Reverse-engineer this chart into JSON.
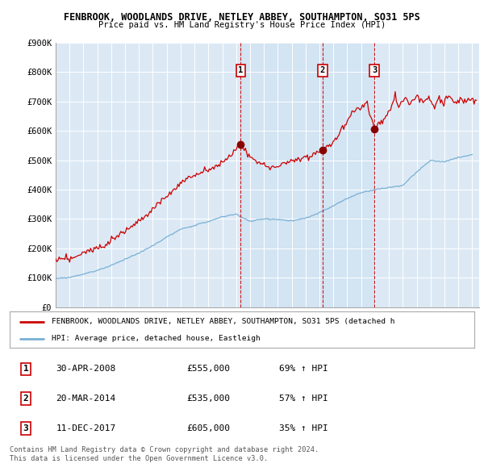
{
  "title1": "FENBROOK, WOODLANDS DRIVE, NETLEY ABBEY, SOUTHAMPTON, SO31 5PS",
  "title2": "Price paid vs. HM Land Registry's House Price Index (HPI)",
  "ylim": [
    0,
    900000
  ],
  "yticks": [
    0,
    100000,
    200000,
    300000,
    400000,
    500000,
    600000,
    700000,
    800000,
    900000
  ],
  "ytick_labels": [
    "£0",
    "£100K",
    "£200K",
    "£300K",
    "£400K",
    "£500K",
    "£600K",
    "£700K",
    "£800K",
    "£900K"
  ],
  "xlim_start": 1995.0,
  "xlim_end": 2025.5,
  "sale_dates": [
    2008.33,
    2014.22,
    2017.95
  ],
  "sale_prices": [
    555000,
    535000,
    605000
  ],
  "sale_labels": [
    "1",
    "2",
    "3"
  ],
  "sale_info": [
    [
      "1",
      "30-APR-2008",
      "£555,000",
      "69% ↑ HPI"
    ],
    [
      "2",
      "20-MAR-2014",
      "£535,000",
      "57% ↑ HPI"
    ],
    [
      "3",
      "11-DEC-2017",
      "£605,000",
      "35% ↑ HPI"
    ]
  ],
  "legend_line1": "FENBROOK, WOODLANDS DRIVE, NETLEY ABBEY, SOUTHAMPTON, SO31 5PS (detached h",
  "legend_line2": "HPI: Average price, detached house, Eastleigh",
  "footer": "Contains HM Land Registry data © Crown copyright and database right 2024.\nThis data is licensed under the Open Government Licence v3.0.",
  "bg_color": "#dce9f5",
  "shaded_bg": "#cfe0f0",
  "plot_bg": "#dce9f5",
  "red_color": "#cc0000",
  "blue_color": "#7ab0d4",
  "grid_color": "#ffffff",
  "dashed_line_color": "#cc0000",
  "hpi_years": [
    1995,
    1996,
    1997,
    1998,
    1999,
    2000,
    2001,
    2002,
    2003,
    2004,
    2005,
    2006,
    2007,
    2008,
    2009,
    2010,
    2011,
    2012,
    2013,
    2014,
    2015,
    2016,
    2017,
    2018,
    2019,
    2020,
    2021,
    2022,
    2023,
    2024,
    2025
  ],
  "hpi_values": [
    97000,
    101000,
    112000,
    125000,
    142000,
    163000,
    183000,
    209000,
    238000,
    264000,
    278000,
    291000,
    307000,
    316000,
    291000,
    300000,
    298000,
    293000,
    302000,
    321000,
    345000,
    370000,
    390000,
    400000,
    408000,
    415000,
    460000,
    500000,
    495000,
    510000,
    520000
  ],
  "red_values_1995_2008": [
    160000,
    165000,
    183000,
    204000,
    232000,
    266000,
    299000,
    341000,
    388000,
    431000,
    454000,
    475000,
    501000,
    555000
  ],
  "red_values_2008_2014": [
    555000,
    510000,
    490000,
    478000,
    480000,
    490000,
    502000,
    510000,
    520000,
    535000
  ],
  "red_values_2014_2017": [
    535000,
    555000,
    580000,
    620000,
    660000,
    680000,
    700000,
    605000
  ],
  "red_values_2017_2025": [
    605000,
    620000,
    630000,
    640000,
    660000,
    665000,
    690000,
    720000,
    680000,
    700000,
    710000,
    700000,
    690000,
    700000,
    720000,
    710000,
    700000,
    710000,
    720000,
    700000,
    680000,
    700000,
    710000,
    695000,
    710000,
    720000,
    700000,
    690000,
    700000,
    705000,
    710000,
    700000,
    705000,
    710000,
    700000
  ]
}
